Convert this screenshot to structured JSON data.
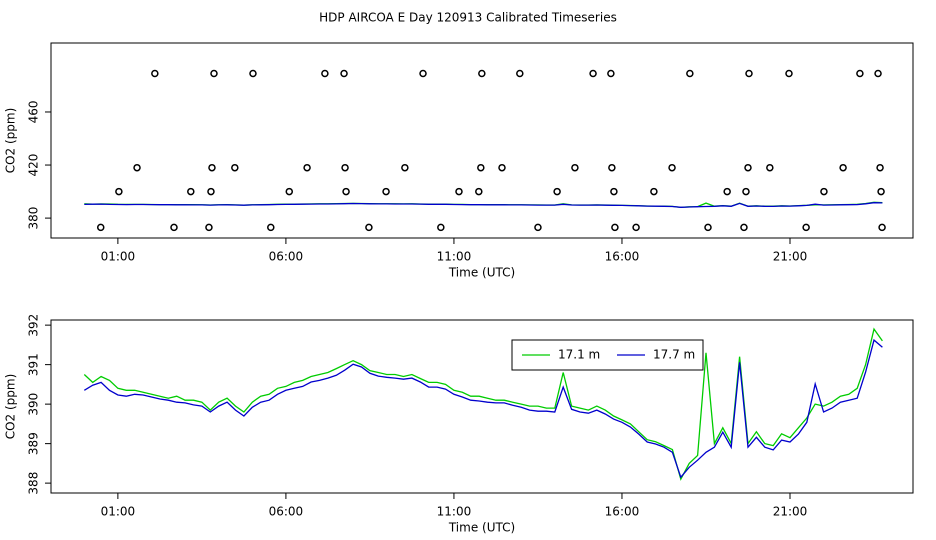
{
  "title": "HDP AIRCOA E  Day 120913  Calibrated Timeseries",
  "chart_data": [
    {
      "type": "scatter",
      "xlabel": "Time (UTC)",
      "ylabel": "CO2 (ppm)",
      "xlim": [
        -0.99,
        24.66
      ],
      "ylim": [
        365,
        512
      ],
      "xticks": [
        {
          "value": 1,
          "label": "01:00"
        },
        {
          "value": 6,
          "label": "06:00"
        },
        {
          "value": 11,
          "label": "11:00"
        },
        {
          "value": 16,
          "label": "16:00"
        },
        {
          "value": 21,
          "label": "21:00"
        }
      ],
      "yticks": [
        380,
        420,
        460
      ],
      "points": {
        "color": "#000000",
        "x": [
          0.49,
          2.67,
          3.71,
          5.55,
          8.47,
          10.61,
          13.5,
          15.79,
          16.42,
          18.56,
          19.63,
          21.48,
          23.74,
          1.03,
          3.17,
          3.77,
          6.1,
          7.79,
          8.98,
          11.15,
          11.74,
          14.07,
          15.76,
          16.95,
          19.13,
          19.69,
          22.01,
          23.71,
          1.57,
          3.8,
          4.48,
          6.63,
          7.76,
          9.54,
          11.8,
          12.43,
          14.6,
          15.7,
          17.49,
          19.75,
          20.4,
          22.58,
          23.68,
          2.1,
          3.86,
          5.02,
          7.16,
          7.73,
          10.08,
          11.83,
          12.96,
          15.14,
          15.67,
          18.02,
          19.78,
          20.97,
          23.08,
          23.62
        ],
        "y": [
          373,
          373,
          373,
          373,
          373,
          373,
          373,
          373,
          373,
          373,
          373,
          373,
          373,
          400,
          400,
          400,
          400,
          400,
          400,
          400,
          400,
          400,
          400,
          400,
          400,
          400,
          400,
          400,
          418,
          418,
          418,
          418,
          418,
          418,
          418,
          418,
          418,
          418,
          418,
          418,
          418,
          418,
          418,
          489,
          489,
          489,
          489,
          489,
          489,
          489,
          489,
          489,
          489,
          489,
          489,
          489,
          489,
          489
        ]
      }
    },
    {
      "type": "line",
      "xlabel": "Time (UTC)",
      "ylabel": "CO2 (ppm)",
      "xlim": [
        -0.99,
        24.66
      ],
      "ylim": [
        387.75,
        392.13
      ],
      "xticks": [
        {
          "value": 1,
          "label": "01:00"
        },
        {
          "value": 6,
          "label": "06:00"
        },
        {
          "value": 11,
          "label": "11:00"
        },
        {
          "value": 16,
          "label": "16:00"
        },
        {
          "value": 21,
          "label": "21:00"
        }
      ],
      "yticks": [
        388,
        389,
        390,
        391,
        392
      ],
      "x": [
        0,
        0.25,
        0.5,
        0.75,
        1,
        1.25,
        1.5,
        1.75,
        2,
        2.25,
        2.5,
        2.75,
        3,
        3.25,
        3.5,
        3.75,
        4,
        4.25,
        4.5,
        4.75,
        5,
        5.25,
        5.5,
        5.75,
        6,
        6.25,
        6.5,
        6.75,
        7,
        7.25,
        7.5,
        7.75,
        8,
        8.25,
        8.5,
        8.75,
        9,
        9.25,
        9.5,
        9.75,
        10,
        10.25,
        10.5,
        10.75,
        11,
        11.25,
        11.5,
        11.75,
        12,
        12.25,
        12.5,
        12.75,
        13,
        13.25,
        13.5,
        13.75,
        14,
        14.25,
        14.5,
        14.75,
        15,
        15.25,
        15.5,
        15.75,
        16,
        16.25,
        16.5,
        16.75,
        17,
        17.25,
        17.5,
        17.75,
        18,
        18.25,
        18.5,
        18.75,
        19,
        19.25,
        19.5,
        19.75,
        20,
        20.25,
        20.5,
        20.75,
        21,
        21.25,
        21.5,
        21.75,
        22,
        22.25,
        22.5,
        22.75,
        23,
        23.25,
        23.5,
        23.75
      ],
      "series": [
        {
          "name": "17.1 m",
          "color": "#00cc00",
          "values": [
            390.75,
            390.55,
            390.7,
            390.6,
            390.4,
            390.35,
            390.35,
            390.3,
            390.25,
            390.2,
            390.15,
            390.2,
            390.1,
            390.1,
            390.05,
            389.85,
            390.05,
            390.15,
            389.95,
            389.8,
            390.05,
            390.2,
            390.25,
            390.4,
            390.45,
            390.55,
            390.6,
            390.7,
            390.75,
            390.8,
            390.9,
            391.0,
            391.1,
            391.0,
            390.85,
            390.8,
            390.75,
            390.75,
            390.7,
            390.75,
            390.65,
            390.55,
            390.55,
            390.5,
            390.35,
            390.3,
            390.2,
            390.2,
            390.15,
            390.1,
            390.1,
            390.05,
            390.0,
            389.95,
            389.95,
            389.9,
            389.9,
            390.8,
            389.95,
            389.9,
            389.85,
            389.95,
            389.85,
            389.7,
            389.6,
            389.5,
            389.3,
            389.1,
            389.05,
            388.95,
            388.85,
            388.1,
            388.5,
            388.7,
            391.3,
            389.0,
            389.4,
            389.0,
            391.2,
            389.0,
            389.3,
            389.0,
            388.95,
            389.25,
            389.15,
            389.4,
            389.65,
            390.0,
            389.95,
            390.05,
            390.2,
            390.25,
            390.4,
            391.0,
            391.9,
            391.6
          ]
        },
        {
          "name": "17.7 m",
          "color": "#0000cc",
          "values": [
            390.35,
            390.48,
            390.55,
            390.35,
            390.23,
            390.2,
            390.25,
            390.23,
            390.18,
            390.13,
            390.1,
            390.05,
            390.03,
            389.98,
            389.95,
            389.8,
            389.95,
            390.05,
            389.85,
            389.7,
            389.92,
            390.05,
            390.1,
            390.25,
            390.35,
            390.4,
            390.45,
            390.56,
            390.6,
            390.66,
            390.73,
            390.86,
            391.01,
            390.94,
            390.78,
            390.71,
            390.68,
            390.66,
            390.63,
            390.66,
            390.56,
            390.43,
            390.43,
            390.38,
            390.25,
            390.18,
            390.1,
            390.08,
            390.05,
            390.03,
            390.03,
            389.97,
            389.92,
            389.85,
            389.82,
            389.82,
            389.8,
            390.43,
            389.87,
            389.8,
            389.77,
            389.85,
            389.75,
            389.62,
            389.54,
            389.42,
            389.24,
            389.04,
            388.99,
            388.91,
            388.78,
            388.15,
            388.4,
            388.58,
            388.78,
            388.91,
            389.29,
            388.91,
            391.06,
            388.91,
            389.16,
            388.91,
            388.84,
            389.09,
            389.04,
            389.24,
            389.54,
            390.51,
            389.8,
            389.9,
            390.05,
            390.1,
            390.15,
            390.81,
            391.62,
            391.44
          ]
        }
      ]
    }
  ]
}
